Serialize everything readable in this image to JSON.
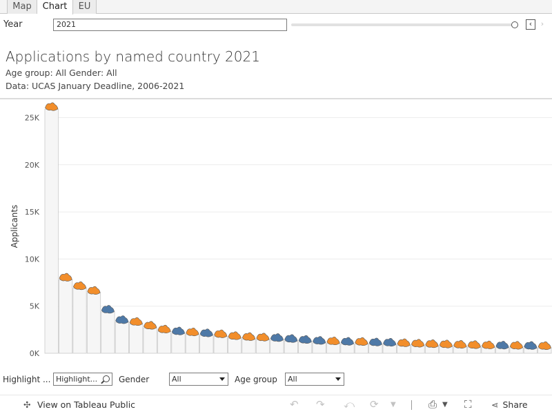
{
  "tabs": [
    {
      "label": "Map",
      "active": false
    },
    {
      "label": "Chart",
      "active": true
    },
    {
      "label": "EU",
      "active": false
    }
  ],
  "year_control": {
    "label": "Year",
    "value": "2021",
    "prev_glyph": "‹",
    "next_glyph": "›"
  },
  "header": {
    "title": "Applications by named country 2021",
    "subtitle": "Age group: All Gender: All",
    "source": "Data: UCAS January Deadline, 2006-2021"
  },
  "chart_data": {
    "type": "bar",
    "ylabel": "Applicants",
    "ylim": [
      0,
      26500
    ],
    "yticks": [
      0,
      5000,
      10000,
      15000,
      20000,
      25000
    ],
    "ytick_labels": [
      "0K",
      "5K",
      "10K",
      "15K",
      "20K",
      "25K"
    ],
    "grid": true,
    "legend": false,
    "values": [
      25900,
      7800,
      6900,
      6400,
      4400,
      3300,
      3100,
      2700,
      2300,
      2100,
      2000,
      1900,
      1800,
      1600,
      1500,
      1450,
      1400,
      1300,
      1200,
      1100,
      1050,
      1000,
      980,
      930,
      900,
      850,
      800,
      750,
      720,
      680,
      650,
      620,
      600,
      580,
      560,
      540
    ],
    "colors": [
      "orange",
      "orange",
      "orange",
      "orange",
      "blue",
      "blue",
      "orange",
      "orange",
      "orange",
      "blue",
      "orange",
      "blue",
      "orange",
      "orange",
      "orange",
      "orange",
      "blue",
      "blue",
      "blue",
      "blue",
      "orange",
      "blue",
      "orange",
      "blue",
      "blue",
      "orange",
      "orange",
      "orange",
      "orange",
      "orange",
      "orange",
      "orange",
      "blue",
      "orange",
      "blue",
      "orange"
    ],
    "palette": {
      "orange": "#f28e2b",
      "blue": "#4e79a7",
      "bar_fill": "#f6f6f6",
      "bar_stroke": "#c9c9c9",
      "grid": "#ececec"
    }
  },
  "filters": {
    "highlight_label": "Highlight ...",
    "highlight_placeholder": "Highlight...",
    "gender_label": "Gender",
    "gender_value": "All",
    "age_label": "Age group",
    "age_value": "All"
  },
  "toolbar": {
    "view_label": "View on Tableau Public",
    "share_label": "Share",
    "icons": [
      "undo-icon",
      "redo-icon",
      "revert-icon",
      "refresh-icon",
      "download-icon",
      "fullscreen-icon",
      "share-icon"
    ]
  }
}
